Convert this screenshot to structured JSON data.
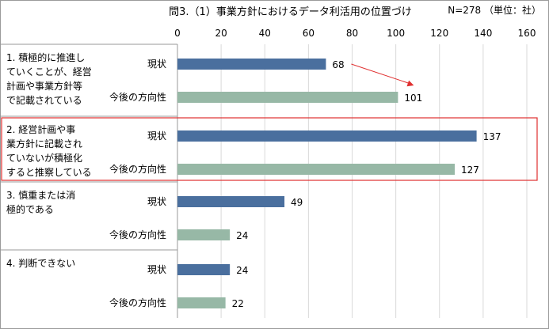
{
  "header": {
    "title": "問3.（1）事業方針におけるデータ利活用の位置づけ",
    "note": "N=278 （単位：社）"
  },
  "colors": {
    "current": "#4a6f9e",
    "future": "#97b8a6",
    "highlight_border": "#e03030",
    "arrow": "#e03030",
    "grid": "#d9d9d9"
  },
  "chart_data": {
    "type": "bar",
    "orientation": "horizontal",
    "xlim": [
      0,
      160
    ],
    "ticks": [
      0,
      20,
      40,
      60,
      80,
      100,
      120,
      140,
      160
    ],
    "grid": true,
    "groups": [
      {
        "label": "1. 積極的に推進していくことが、経営計画や事業方針等で記載されている",
        "label_lines": [
          "1. 積極的に推進し",
          "ていくことが、経営",
          "計画や事業方針等",
          "で記載されている"
        ],
        "bars": [
          {
            "series": "現状",
            "value": 68
          },
          {
            "series": "今後の方向性",
            "value": 101
          }
        ]
      },
      {
        "label": "2. 経営計画や事業方針に記載されていないが積極化すると推察している",
        "label_lines": [
          "2. 経営計画や事",
          "業方針に記載され",
          "ていないが積極化",
          "すると推察している"
        ],
        "highlighted": true,
        "bars": [
          {
            "series": "現状",
            "value": 137
          },
          {
            "series": "今後の方向性",
            "value": 127
          }
        ]
      },
      {
        "label": "3. 慎重または消極的である",
        "label_lines": [
          "3. 慎重または消",
          "極的である"
        ],
        "bars": [
          {
            "series": "現状",
            "value": 49
          },
          {
            "series": "今後の方向性",
            "value": 24
          }
        ]
      },
      {
        "label": "4. 判断できない",
        "label_lines": [
          "4. 判断できない"
        ],
        "bars": [
          {
            "series": "現状",
            "value": 24
          },
          {
            "series": "今後の方向性",
            "value": 22
          }
        ]
      }
    ],
    "annotations": [
      {
        "type": "arrow",
        "from": {
          "group": 0,
          "series": "現状"
        },
        "to": {
          "group": 0,
          "series": "今後の方向性"
        }
      }
    ]
  }
}
